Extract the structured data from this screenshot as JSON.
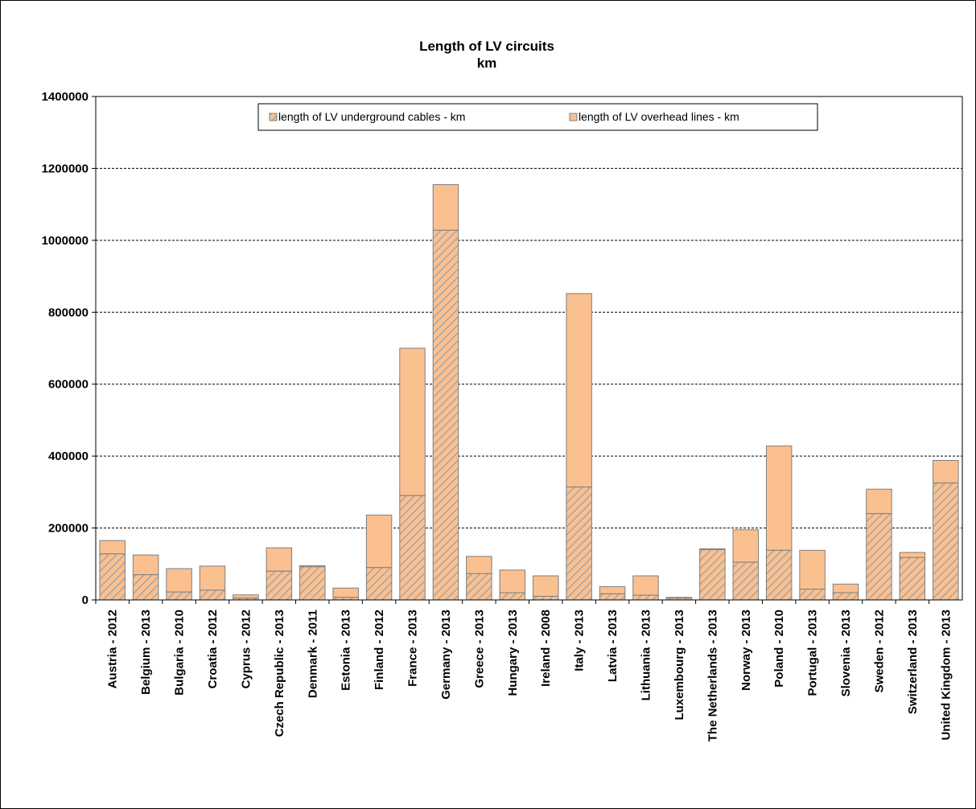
{
  "chart_data": {
    "type": "bar",
    "stacked": true,
    "title": "Length of LV circuits",
    "subtitle": "km",
    "xlabel": "",
    "ylabel": "",
    "ylim": [
      0,
      1400000
    ],
    "yticks": [
      0,
      200000,
      400000,
      600000,
      800000,
      1000000,
      1200000,
      1400000
    ],
    "grid": true,
    "legend_position": "top-center",
    "categories": [
      "Austria - 2012",
      "Belgium - 2013",
      "Bulgaria - 2010",
      "Croatia - 2012",
      "Cyprus - 2012",
      "Czech Republic - 2013",
      "Denmark - 2011",
      "Estonia - 2013",
      "Finland - 2012",
      "France - 2013",
      "Germany - 2013",
      "Greece - 2013",
      "Hungary - 2013",
      "Ireland - 2008",
      "Italy - 2013",
      "Latvia - 2013",
      "Lithuania - 2013",
      "Luxembourg - 2013",
      "The Netherlands - 2013",
      "Norway - 2013",
      "Poland - 2010",
      "Portugal - 2013",
      "Slovenia - 2013",
      "Sweden - 2012",
      "Switzerland - 2013",
      "United Kingdom - 2013"
    ],
    "series": [
      {
        "name": "length of LV underground cables - km",
        "color": "#fac090",
        "pattern": "diagonal-hatch-grey",
        "values": [
          128000,
          70000,
          22000,
          27000,
          5000,
          80000,
          92000,
          7000,
          90000,
          290000,
          1028000,
          73000,
          20000,
          10000,
          314000,
          17000,
          13000,
          5000,
          140000,
          105000,
          138000,
          30000,
          20000,
          240000,
          118000,
          325000
        ]
      },
      {
        "name": "length of LV overhead lines - km",
        "color": "#fac090",
        "values": [
          37000,
          55000,
          65000,
          67000,
          9000,
          65000,
          3000,
          26000,
          146000,
          410000,
          127000,
          48000,
          63000,
          57000,
          538000,
          20000,
          54000,
          2000,
          2000,
          90000,
          290000,
          108000,
          24000,
          68000,
          14000,
          63000
        ]
      }
    ]
  }
}
